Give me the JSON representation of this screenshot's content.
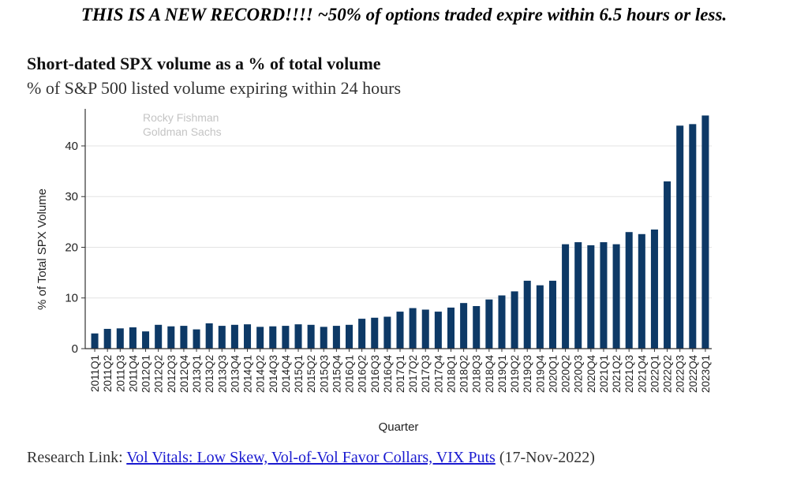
{
  "headline": "THIS IS A NEW RECORD!!!! ~50% of options traded expire within 6.5 hours or less.",
  "watermark": {
    "line1": "Rocky Fishman",
    "line2": "Goldman Sachs"
  },
  "footer": {
    "prefix": "Research Link: ",
    "link_text": "Vol Vitals: Low Skew, Vol-of-Vol Favor Collars, VIX Puts",
    "suffix": " (17-Nov-2022)"
  },
  "chart_data": {
    "type": "bar",
    "title": "Short-dated SPX volume as a % of total volume",
    "subtitle": "% of S&P 500 listed volume expiring within 24 hours",
    "xlabel": "Quarter",
    "ylabel": "% of Total SPX Volume",
    "ylim": [
      0,
      47
    ],
    "yticks": [
      0,
      10,
      20,
      30,
      40
    ],
    "grid": true,
    "bar_color": "#0d3966",
    "categories": [
      "2011Q1",
      "2011Q2",
      "2011Q3",
      "2011Q4",
      "2012Q1",
      "2012Q2",
      "2012Q3",
      "2012Q4",
      "2013Q1",
      "2013Q2",
      "2013Q3",
      "2013Q4",
      "2014Q1",
      "2014Q2",
      "2014Q3",
      "2014Q4",
      "2015Q1",
      "2015Q2",
      "2015Q3",
      "2015Q4",
      "2016Q1",
      "2016Q2",
      "2016Q3",
      "2016Q4",
      "2017Q1",
      "2017Q2",
      "2017Q3",
      "2017Q4",
      "2018Q1",
      "2018Q2",
      "2018Q3",
      "2018Q4",
      "2019Q1",
      "2019Q2",
      "2019Q3",
      "2019Q4",
      "2020Q1",
      "2020Q2",
      "2020Q3",
      "2020Q4",
      "2021Q1",
      "2021Q2",
      "2021Q3",
      "2021Q4",
      "2022Q1",
      "2022Q2",
      "2022Q3",
      "2022Q4",
      "2023Q1"
    ],
    "values": [
      3.0,
      3.9,
      4.0,
      4.2,
      3.4,
      4.7,
      4.4,
      4.5,
      3.8,
      5.0,
      4.5,
      4.7,
      4.8,
      4.3,
      4.4,
      4.5,
      4.8,
      4.7,
      4.3,
      4.5,
      4.7,
      5.9,
      6.1,
      6.3,
      7.3,
      8.0,
      7.7,
      7.3,
      8.1,
      9.0,
      8.4,
      9.7,
      10.5,
      11.3,
      13.4,
      12.5,
      13.4,
      20.6,
      21.0,
      20.4,
      21.0,
      20.6,
      23.0,
      22.6,
      23.5,
      33.0,
      44.0,
      44.3,
      46.0
    ]
  }
}
